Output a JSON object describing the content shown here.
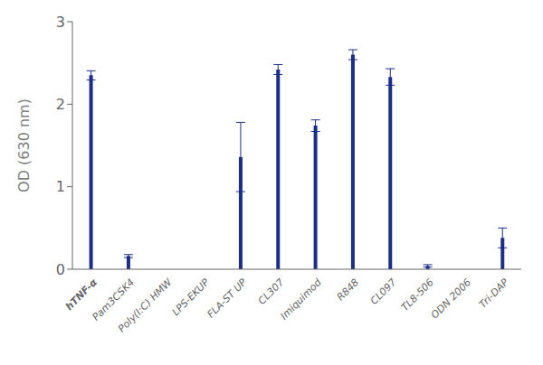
{
  "chart_data": {
    "type": "bar",
    "categories": [
      "hTNF-α",
      "Pam3CSK4",
      "Poly(I:C) HMW",
      "LPS-EKUP",
      "FLA-ST UP",
      "CL307",
      "Imiquimod",
      "R848",
      "CL097",
      "TL8-506",
      "ODN 2006",
      "Tri-DAP"
    ],
    "values": [
      2.35,
      0.16,
      0.0,
      0.0,
      1.36,
      2.42,
      1.74,
      2.6,
      2.33,
      0.04,
      0.0,
      0.38
    ],
    "errors": [
      0.055,
      0.018,
      0.0,
      0.0,
      0.42,
      0.06,
      0.07,
      0.06,
      0.1,
      0.015,
      0.0,
      0.12
    ],
    "color": "#1a2e8c",
    "ylabel": "OD (630 nm)",
    "ylim": [
      0,
      3
    ],
    "yticks": [
      0,
      1,
      2,
      3
    ],
    "grid": false
  }
}
